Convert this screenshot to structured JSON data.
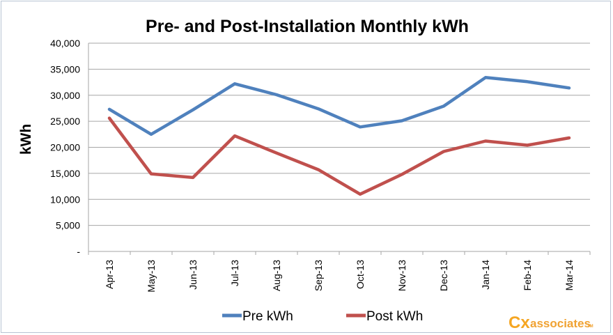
{
  "chart_data": {
    "type": "line",
    "title": "Pre- and Post-Installation Monthly kWh",
    "xlabel": "",
    "ylabel": "kWh",
    "categories": [
      "Apr-13",
      "May-13",
      "Jun-13",
      "Jul-13",
      "Aug-13",
      "Sep-13",
      "Oct-13",
      "Nov-13",
      "Dec-13",
      "Jan-14",
      "Feb-14",
      "Mar-14"
    ],
    "ylim": [
      0,
      40000
    ],
    "yticks": [
      0,
      5000,
      10000,
      15000,
      20000,
      25000,
      30000,
      35000,
      40000
    ],
    "ytick_labels": [
      "-",
      "5,000",
      "10,000",
      "15,000",
      "20,000",
      "25,000",
      "30,000",
      "35,000",
      "40,000"
    ],
    "grid": true,
    "legend_position": "bottom",
    "series": [
      {
        "name": "Pre kWh",
        "color": "#4f81bd",
        "values": [
          27300,
          22500,
          27200,
          32200,
          30100,
          27400,
          23900,
          25100,
          27900,
          33400,
          32600,
          31400
        ]
      },
      {
        "name": "Post kWh",
        "color": "#c0504d",
        "values": [
          25600,
          14900,
          14200,
          22200,
          18900,
          15700,
          11000,
          14800,
          19200,
          21200,
          20400,
          21800
        ]
      }
    ]
  },
  "logo": {
    "mark": "Cx",
    "text": "associates",
    "tm": "TM"
  }
}
